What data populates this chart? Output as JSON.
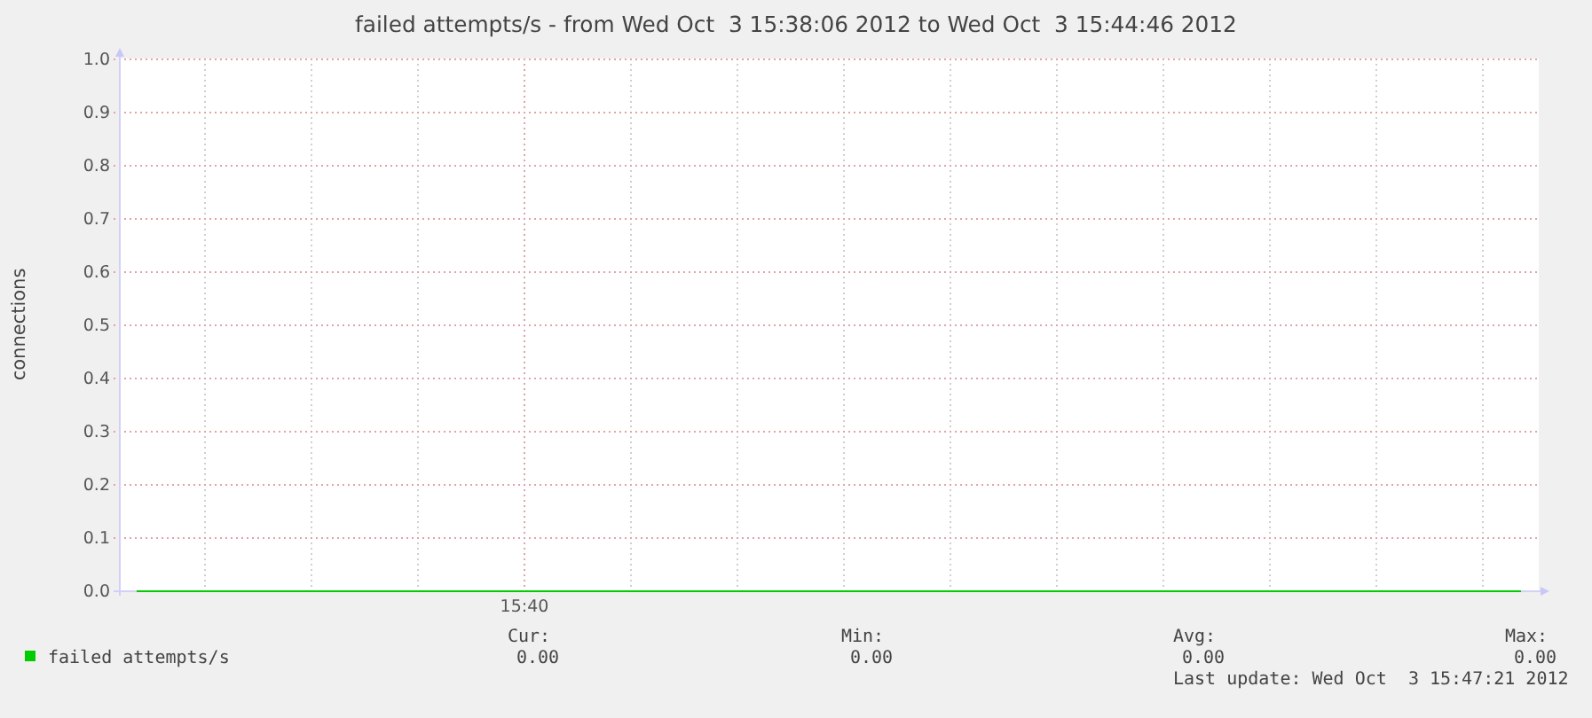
{
  "chart_data": {
    "type": "line",
    "title": "failed attempts/s - from Wed Oct  3 15:38:06 2012 to Wed Oct  3 15:44:46 2012",
    "ylabel": "connections",
    "categories": [
      null,
      null,
      null,
      null,
      null,
      null,
      null,
      null,
      null,
      null,
      null,
      null,
      null,
      null,
      null,
      null,
      null,
      null,
      null,
      null,
      null,
      null,
      null,
      null,
      null,
      null,
      null,
      null,
      null,
      null,
      null,
      null,
      null,
      null,
      null,
      null,
      null,
      null,
      null,
      null
    ],
    "series": [
      {
        "name": "failed attempts/s",
        "color": "#00cc00",
        "values": [
          0,
          0,
          0,
          0,
          0,
          0,
          0,
          0,
          0,
          0,
          0,
          0,
          0,
          0,
          0,
          0,
          0,
          0,
          0,
          0,
          0,
          0,
          0,
          0,
          0,
          0,
          0,
          0,
          0,
          0,
          0,
          0,
          0,
          0,
          0,
          0,
          0,
          0,
          0,
          0
        ]
      }
    ],
    "ylim": [
      0,
      1
    ],
    "yticks": [
      {
        "value": 0,
        "label": "0.0"
      },
      {
        "value": 0.1,
        "label": "0.1"
      },
      {
        "value": 0.2,
        "label": "0.2"
      },
      {
        "value": 0.3,
        "label": "0.3"
      },
      {
        "value": 0.4,
        "label": "0.4"
      },
      {
        "value": 0.5,
        "label": "0.5"
      },
      {
        "value": 0.6,
        "label": "0.6"
      },
      {
        "value": 0.7,
        "label": "0.7"
      },
      {
        "value": 0.8,
        "label": "0.8"
      },
      {
        "value": 0.9,
        "label": "0.9"
      },
      {
        "value": 1,
        "label": "1.0"
      }
    ],
    "grid": true,
    "legend": "bottom",
    "annotations": [
      "15:40",
      "Cur:",
      "Min:",
      "Avg:",
      "Max:",
      "0.00",
      "0.00",
      "0.00",
      "0.00",
      "Last update: Wed Oct  3 15:47:21 2012"
    ]
  }
}
